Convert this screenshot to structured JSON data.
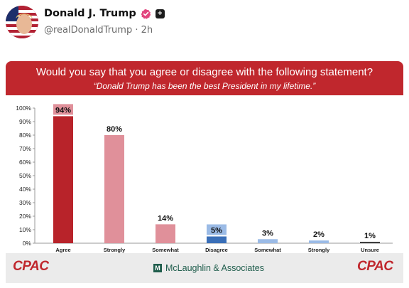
{
  "post": {
    "author_name": "Donald J. Trump",
    "handle": "@realDonaldTrump",
    "separator": "·",
    "time": "2h",
    "verified_icon": "verified-badge-icon",
    "plus_icon": "plus-badge-icon",
    "plus_glyph": "+"
  },
  "banner": {
    "question": "Would you say that you agree or disagree with the following statement?",
    "statement": "“Donald Trump has been the best President in my lifetime.”"
  },
  "colors": {
    "banner": "#c0272d",
    "agree_dark": "#b8232a",
    "agree_light": "#e0909a",
    "disagree_dark": "#3a6fb8",
    "disagree_light": "#9bbbe6",
    "unsure": "#333333"
  },
  "chart_data": {
    "type": "bar",
    "categories": [
      "Agree",
      "Strongly",
      "Somewhat",
      "Disagree",
      "Somewhat",
      "Strongly",
      "Unsure"
    ],
    "values": [
      94,
      80,
      14,
      5,
      3,
      2,
      1
    ],
    "data_labels": [
      "94%",
      "80%",
      "14%",
      "5%",
      "3%",
      "2%",
      "1%"
    ],
    "ylim": [
      0,
      100
    ],
    "yticks": [
      "0%",
      "10%",
      "20%",
      "30%",
      "40%",
      "50%",
      "60%",
      "70%",
      "80%",
      "90%",
      "100%"
    ],
    "grid": false,
    "title": "",
    "xlabel": "",
    "ylabel": ""
  },
  "footer": {
    "left_logo": "CPAC",
    "center_logo": "McLaughlin & Associates",
    "center_mark": "M",
    "right_logo": "CPAC"
  }
}
